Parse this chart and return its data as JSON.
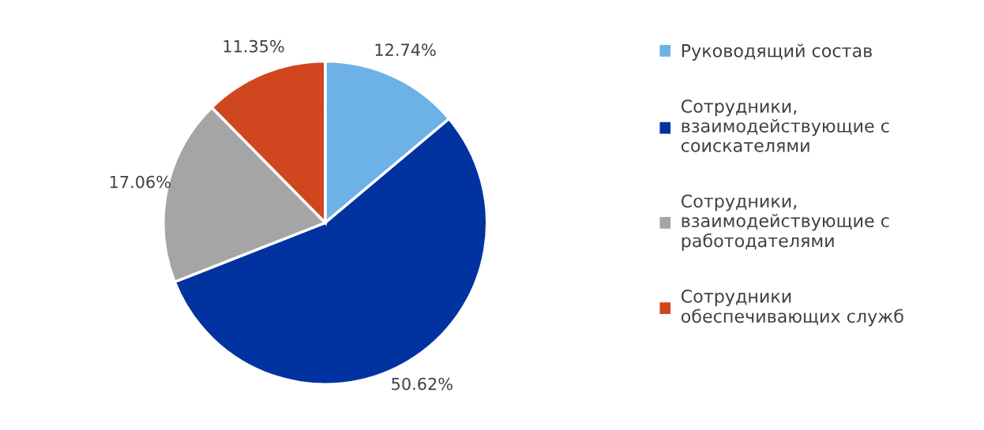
{
  "chart_data": {
    "type": "pie",
    "categories": [
      "Руководящий состав",
      "Сотрудники,\nвзаимодействующие с\nсоискателями",
      "Сотрудники,\nвзаимодействующие с\nработодателями",
      "Сотрудники\nобеспечивающих служб"
    ],
    "values": [
      12.74,
      50.62,
      17.06,
      11.35
    ],
    "colors": [
      "#6cb2e6",
      "#0033a0",
      "#a5a5a5",
      "#d0461f"
    ],
    "value_labels": [
      "12.74%",
      "50.62%",
      "17.06%",
      "11.35%"
    ],
    "legend": "right"
  }
}
